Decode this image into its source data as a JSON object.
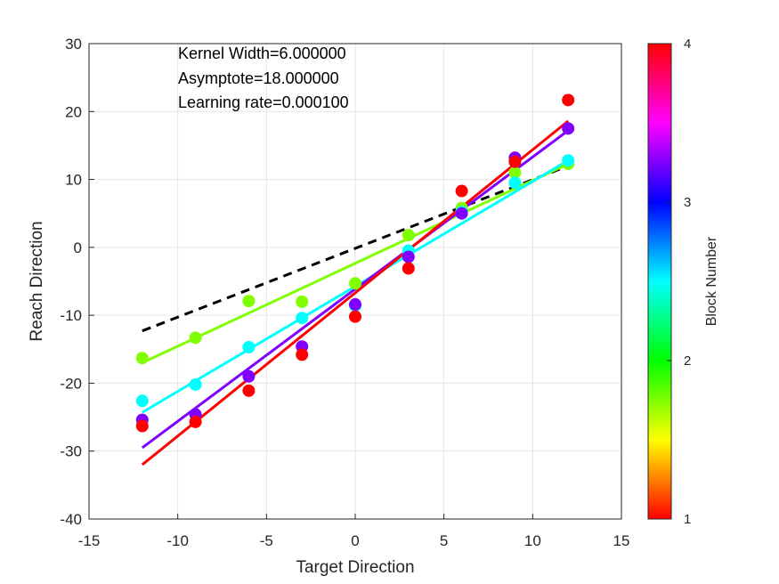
{
  "chart_data": {
    "type": "scatter",
    "title": "",
    "xlabel": "Target Direction",
    "ylabel": "Reach Direction",
    "xlim": [
      -15,
      15
    ],
    "ylim": [
      -40,
      30
    ],
    "xticks": [
      -15,
      -10,
      -5,
      0,
      5,
      10,
      15
    ],
    "yticks": [
      -40,
      -30,
      -20,
      -10,
      0,
      10,
      20,
      30
    ],
    "grid": true,
    "annotations": [
      "Kernel Width=6.000000",
      "Asymptote=18.000000",
      "Learning rate=0.000100"
    ],
    "reference_line": {
      "style": "dashed",
      "color": "#000000",
      "x": [
        -12,
        12
      ],
      "y": [
        -12.3,
        12.0
      ]
    },
    "series": [
      {
        "block": 1.75,
        "color": "#80ff00",
        "x": [
          -12,
          -9,
          -6,
          -3,
          0,
          3,
          6,
          9,
          12
        ],
        "y": [
          -16.3,
          -13.3,
          -7.9,
          -8.0,
          -5.3,
          1.8,
          5.8,
          11.0,
          12.3
        ],
        "fit": {
          "x": [
            -12,
            12
          ],
          "y": [
            -17.0,
            12.3
          ]
        }
      },
      {
        "block": 2.5,
        "color": "#00ffff",
        "x": [
          -12,
          -9,
          -6,
          -3,
          0,
          3,
          6,
          9,
          12
        ],
        "y": [
          -22.6,
          -20.2,
          -14.7,
          -10.4,
          -8.6,
          -0.5,
          5.2,
          9.5,
          12.8
        ],
        "fit": {
          "x": [
            -12,
            12
          ],
          "y": [
            -24.3,
            12.8
          ]
        }
      },
      {
        "block": 3.25,
        "color": "#8000ff",
        "x": [
          -12,
          -9,
          -6,
          -3,
          0,
          3,
          6,
          9,
          12
        ],
        "y": [
          -25.4,
          -24.6,
          -19.0,
          -14.6,
          -8.4,
          -1.4,
          5.0,
          13.2,
          17.5
        ],
        "fit": {
          "x": [
            -12,
            12
          ],
          "y": [
            -29.5,
            17.2
          ]
        }
      },
      {
        "block": 4,
        "color": "#ff0000",
        "x": [
          -12,
          -9,
          -6,
          -3,
          0,
          3,
          6,
          9,
          12
        ],
        "y": [
          -26.3,
          -25.7,
          -21.1,
          -15.8,
          -10.2,
          -3.1,
          8.3,
          12.6,
          21.7
        ],
        "fit": {
          "x": [
            -12,
            12
          ],
          "y": [
            -32.0,
            18.6
          ]
        }
      }
    ],
    "colorbar": {
      "label": "Block Number",
      "range": [
        1,
        4
      ],
      "ticks": [
        1,
        2,
        3,
        4
      ],
      "colormap": "hsv-reversed (red→yellow→green→cyan→blue→magenta→red)"
    }
  }
}
